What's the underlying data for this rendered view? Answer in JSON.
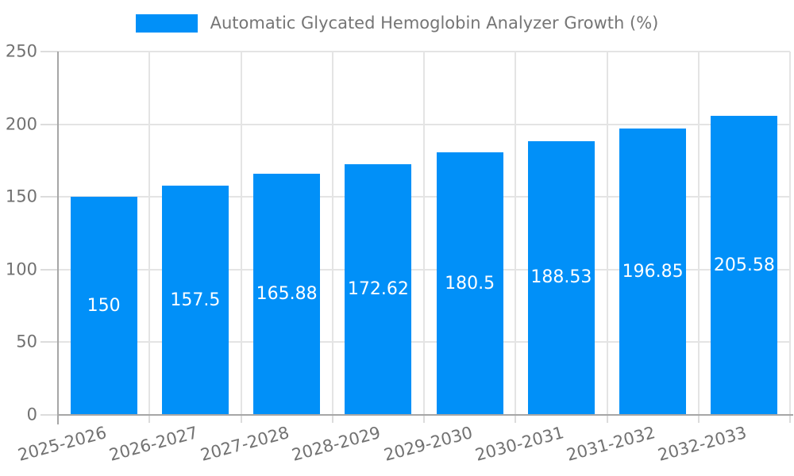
{
  "legend": {
    "label": "Automatic Glycated Hemoglobin Analyzer Growth (%)"
  },
  "chart_data": {
    "type": "bar",
    "title": "Automatic Glycated Hemoglobin Analyzer Growth (%)",
    "series_name": "Automatic Glycated Hemoglobin Analyzer Growth (%)",
    "legend_position": "top",
    "categories": [
      "2025-2026",
      "2026-2027",
      "2027-2028",
      "2028-2029",
      "2029-2030",
      "2030-2031",
      "2031-2032",
      "2032-2033"
    ],
    "values": [
      150,
      157.5,
      165.88,
      172.62,
      180.5,
      188.53,
      196.85,
      205.58
    ],
    "value_labels": [
      "150",
      "157.5",
      "165.88",
      "172.62",
      "180.5",
      "188.53",
      "196.85",
      "205.58"
    ],
    "xlabel": "",
    "ylabel": "",
    "ylim": [
      0,
      250
    ],
    "yticks": [
      0,
      50,
      100,
      150,
      200,
      250
    ],
    "grid": true,
    "x_label_rotation_deg": -15,
    "colors": {
      "bar": "#0190f8",
      "bar_label_text": "#ffffff",
      "axis_text": "#717171",
      "legend_text": "#757575",
      "gridline": "#e4e4e4",
      "tick": "#dcdcdc",
      "axis_line": "#a6a6a6"
    }
  }
}
